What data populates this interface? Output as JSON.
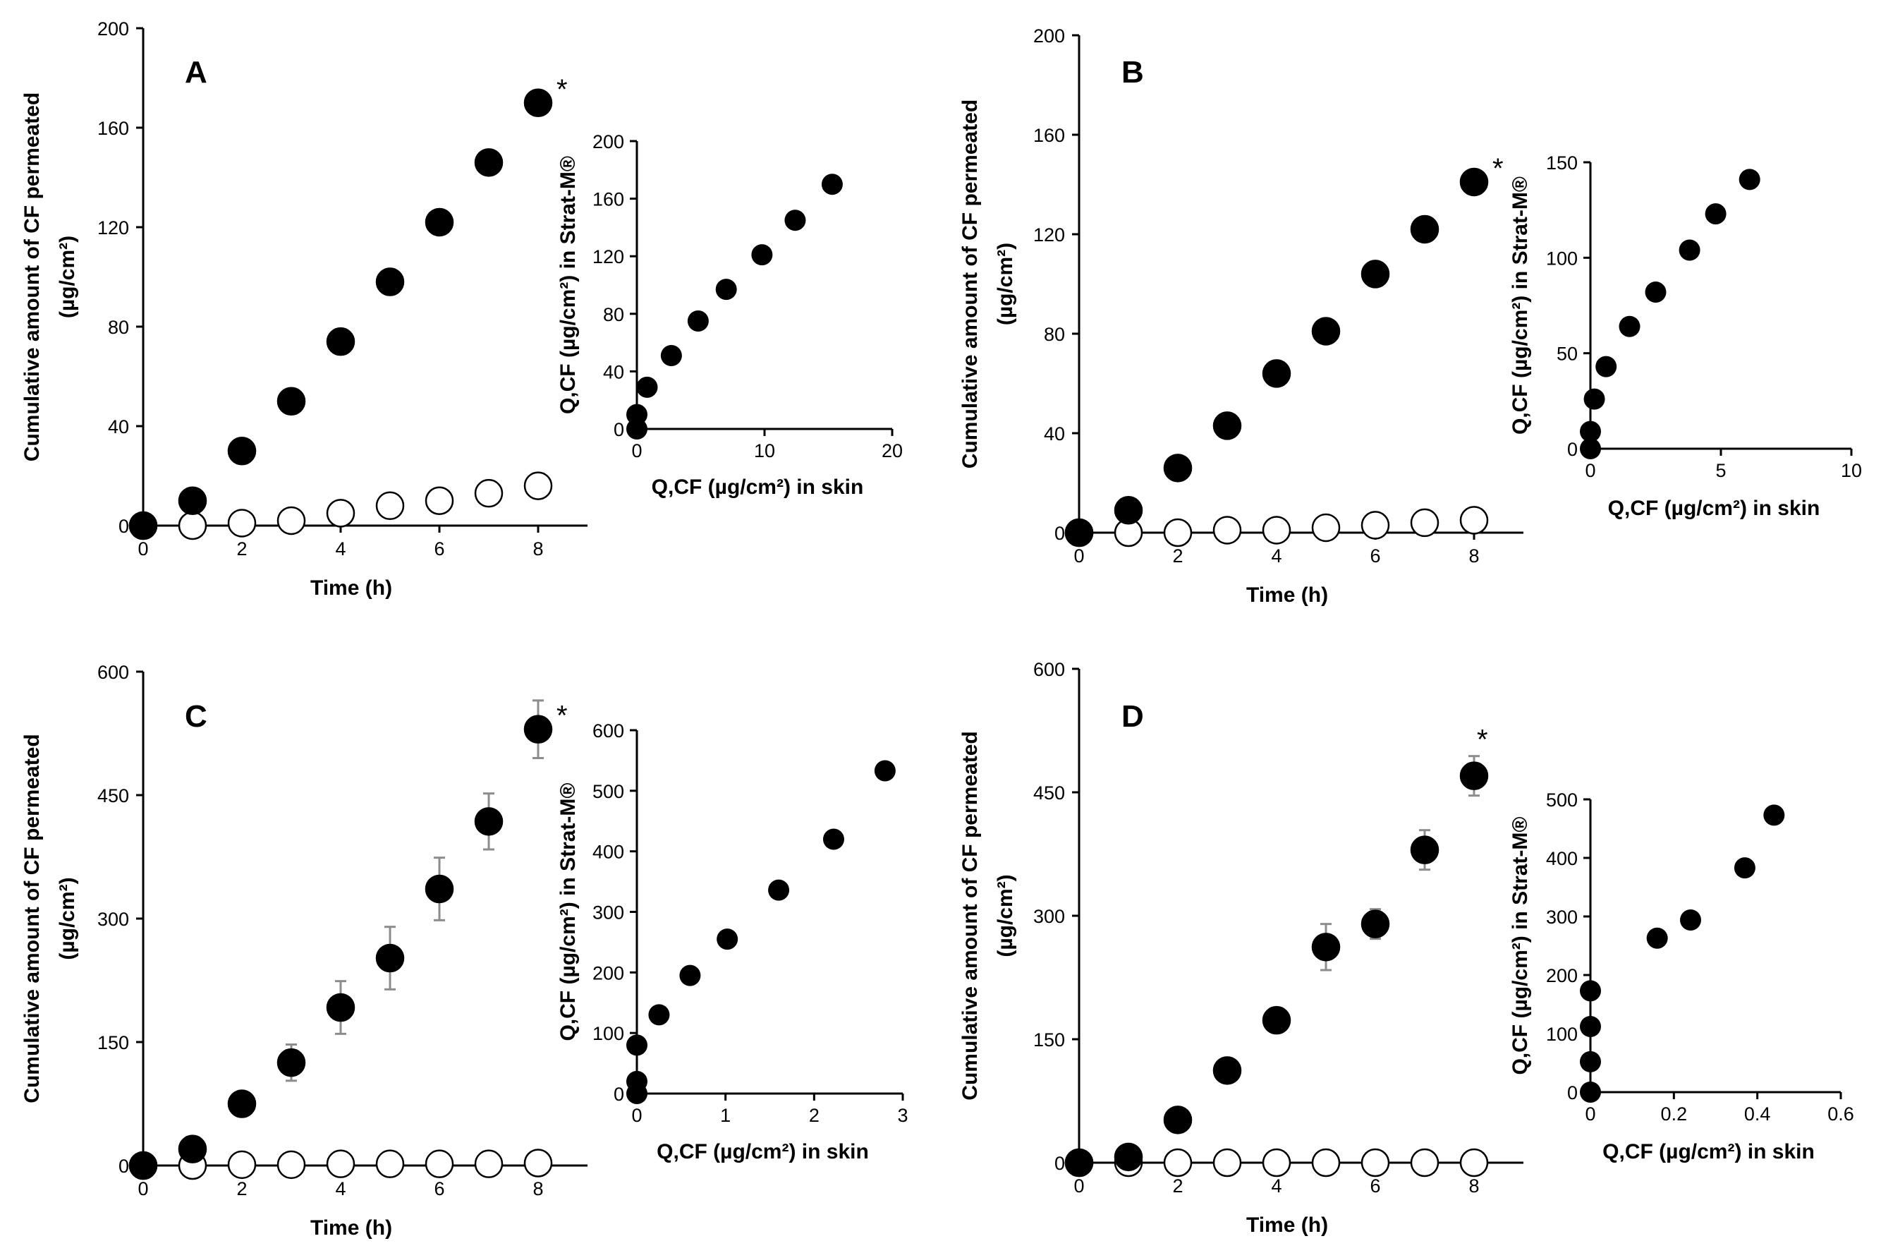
{
  "colors": {
    "filled_marker": "#000000",
    "open_marker": "#ffffff",
    "error_bar": "#8c8c8c"
  },
  "chart_data": [
    {
      "id": "A",
      "panel": "A",
      "type": "scatter",
      "xlabel": "Time (h)",
      "ylabel_line1": "Cumulative amount of CF permeated",
      "ylabel_line2": "(µg/cm²)",
      "xlim": [
        0,
        9
      ],
      "ylim": [
        0,
        200
      ],
      "xticks": [
        "0",
        "2",
        "4",
        "6",
        "8"
      ],
      "yticks": [
        "0",
        "40",
        "80",
        "120",
        "160",
        "200"
      ],
      "significance": "*",
      "series": [
        {
          "name": "filled",
          "marker": "filled-circle",
          "x": [
            0,
            1,
            2,
            3,
            4,
            5,
            6,
            7,
            8
          ],
          "y": [
            0,
            10,
            30,
            50,
            74,
            98,
            122,
            146,
            170
          ],
          "err": [
            0,
            1,
            1,
            1,
            1,
            1,
            1,
            1,
            1
          ]
        },
        {
          "name": "open",
          "marker": "open-circle",
          "x": [
            0,
            1,
            2,
            3,
            4,
            5,
            6,
            7,
            8
          ],
          "y": [
            0,
            0,
            1,
            2,
            5,
            8,
            10,
            13,
            16
          ],
          "err": [
            0,
            0,
            0,
            2,
            2.5,
            3,
            4,
            4,
            5
          ]
        }
      ],
      "inset": {
        "type": "scatter",
        "xlabel": "Q,CF (µg/cm²) in skin",
        "ylabel": "Q,CF (µg/cm²) in Strat-M®",
        "xlim": [
          0,
          20
        ],
        "ylim": [
          0,
          200
        ],
        "xticks": [
          "0",
          "10",
          "20"
        ],
        "yticks": [
          "0",
          "40",
          "80",
          "120",
          "160",
          "200"
        ],
        "x": [
          0,
          0,
          0.8,
          2.7,
          4.8,
          7,
          9.8,
          12.4,
          15.3
        ],
        "y": [
          0,
          10,
          29,
          51,
          75,
          97,
          121,
          145,
          170
        ]
      }
    },
    {
      "id": "B",
      "panel": "B",
      "type": "scatter",
      "xlabel": "Time (h)",
      "ylabel_line1": "Cumulative amount of CF permeated",
      "ylabel_line2": "(µg/cm²)",
      "xlim": [
        0,
        9
      ],
      "ylim": [
        0,
        200
      ],
      "xticks": [
        "0",
        "2",
        "4",
        "6",
        "8"
      ],
      "yticks": [
        "0",
        "40",
        "80",
        "120",
        "160",
        "200"
      ],
      "significance": "*",
      "series": [
        {
          "name": "filled",
          "marker": "filled-circle",
          "x": [
            0,
            1,
            2,
            3,
            4,
            5,
            6,
            7,
            8
          ],
          "y": [
            0,
            9,
            26,
            43,
            64,
            81,
            104,
            122,
            141
          ],
          "err": [
            0,
            1,
            1,
            1,
            1,
            1,
            1,
            2,
            3
          ]
        },
        {
          "name": "open",
          "marker": "open-circle",
          "x": [
            0,
            1,
            2,
            3,
            4,
            5,
            6,
            7,
            8
          ],
          "y": [
            0,
            0,
            0,
            1,
            1,
            2,
            3,
            4,
            5
          ],
          "err": [
            0,
            0,
            0,
            0.5,
            0.5,
            0.5,
            0.5,
            0.5,
            0.5
          ]
        }
      ],
      "inset": {
        "type": "scatter",
        "xlabel": "Q,CF (µg/cm²) in skin",
        "ylabel": "Q,CF (µg/cm²) in Strat-M®",
        "xlim": [
          0,
          10
        ],
        "ylim": [
          0,
          150
        ],
        "xticks": [
          "0",
          "5",
          "10"
        ],
        "yticks": [
          "0",
          "50",
          "100",
          "150"
        ],
        "x": [
          0,
          0,
          0.15,
          0.6,
          1.5,
          2.5,
          3.8,
          4.8,
          6.1
        ],
        "y": [
          0,
          9,
          26,
          43,
          64,
          82,
          104,
          123,
          141
        ]
      }
    },
    {
      "id": "C",
      "panel": "C",
      "type": "scatter",
      "xlabel": "Time (h)",
      "ylabel_line1": "Cumulative amount of CF permeated",
      "ylabel_line2": "(µg/cm²)",
      "xlim": [
        0,
        9
      ],
      "ylim": [
        0,
        600
      ],
      "xticks": [
        "0",
        "2",
        "4",
        "6",
        "8"
      ],
      "yticks": [
        "0",
        "150",
        "300",
        "450",
        "600"
      ],
      "significance": "*",
      "series": [
        {
          "name": "filled",
          "marker": "filled-circle",
          "x": [
            0,
            1,
            2,
            3,
            4,
            5,
            6,
            7,
            8
          ],
          "y": [
            0,
            20,
            75,
            125,
            192,
            252,
            336,
            418,
            530
          ],
          "err": [
            0,
            3,
            5,
            22,
            32,
            38,
            38,
            34,
            35
          ]
        },
        {
          "name": "open",
          "marker": "open-circle",
          "x": [
            0,
            1,
            2,
            3,
            4,
            5,
            6,
            7,
            8
          ],
          "y": [
            0,
            0,
            1,
            1,
            2,
            2,
            2,
            2,
            3
          ],
          "err": [
            0,
            0,
            0,
            0,
            0,
            0,
            0,
            0,
            0
          ]
        }
      ],
      "inset": {
        "type": "scatter",
        "xlabel": "Q,CF (µg/cm²) in skin",
        "ylabel": "Q,CF (µg/cm²) in Strat-M®",
        "xlim": [
          0,
          3
        ],
        "ylim": [
          0,
          600
        ],
        "xticks": [
          "0",
          "1",
          "2",
          "3"
        ],
        "yticks": [
          "0",
          "100",
          "200",
          "300",
          "400",
          "500",
          "600"
        ],
        "x": [
          0,
          0,
          0,
          0.25,
          0.6,
          1.02,
          1.6,
          2.22,
          2.8
        ],
        "y": [
          0,
          20,
          80,
          130,
          195,
          255,
          336,
          420,
          533
        ]
      }
    },
    {
      "id": "D",
      "panel": "D",
      "type": "scatter",
      "xlabel": "Time (h)",
      "ylabel_line1": "Cumulative amount of CF permeated",
      "ylabel_line2": "(µg/cm²)",
      "xlim": [
        0,
        9
      ],
      "ylim": [
        0,
        600
      ],
      "xticks": [
        "0",
        "2",
        "4",
        "6",
        "8"
      ],
      "yticks": [
        "0",
        "150",
        "300",
        "450",
        "600"
      ],
      "significance": "*",
      "series": [
        {
          "name": "filled",
          "marker": "filled-circle",
          "x": [
            0,
            1,
            2,
            3,
            4,
            5,
            6,
            7,
            8
          ],
          "y": [
            0,
            7,
            52,
            112,
            173,
            262,
            290,
            380,
            470
          ],
          "err": [
            0,
            2,
            4,
            12,
            12,
            28,
            18,
            24,
            24
          ]
        },
        {
          "name": "open",
          "marker": "open-circle",
          "x": [
            0,
            1,
            2,
            3,
            4,
            5,
            6,
            7,
            8
          ],
          "y": [
            0,
            0,
            0,
            0,
            0,
            0,
            0,
            0,
            0
          ],
          "err": [
            0,
            0,
            0,
            0,
            0,
            0,
            0,
            0,
            0
          ]
        }
      ],
      "inset": {
        "type": "scatter",
        "xlabel": "Q,CF (µg/cm²) in skin",
        "ylabel": "Q,CF (µg/cm²) in Strat-M®",
        "xlim": [
          0,
          0.6
        ],
        "ylim": [
          0,
          500
        ],
        "xticks": [
          "0",
          "0.2",
          "0.4",
          "0.6"
        ],
        "yticks": [
          "0",
          "100",
          "200",
          "300",
          "400",
          "500"
        ],
        "x": [
          0,
          0,
          0,
          0,
          0.16,
          0.24,
          0.37,
          0.44
        ],
        "y": [
          0,
          52,
          112,
          173,
          263,
          294,
          383,
          473
        ]
      }
    }
  ]
}
